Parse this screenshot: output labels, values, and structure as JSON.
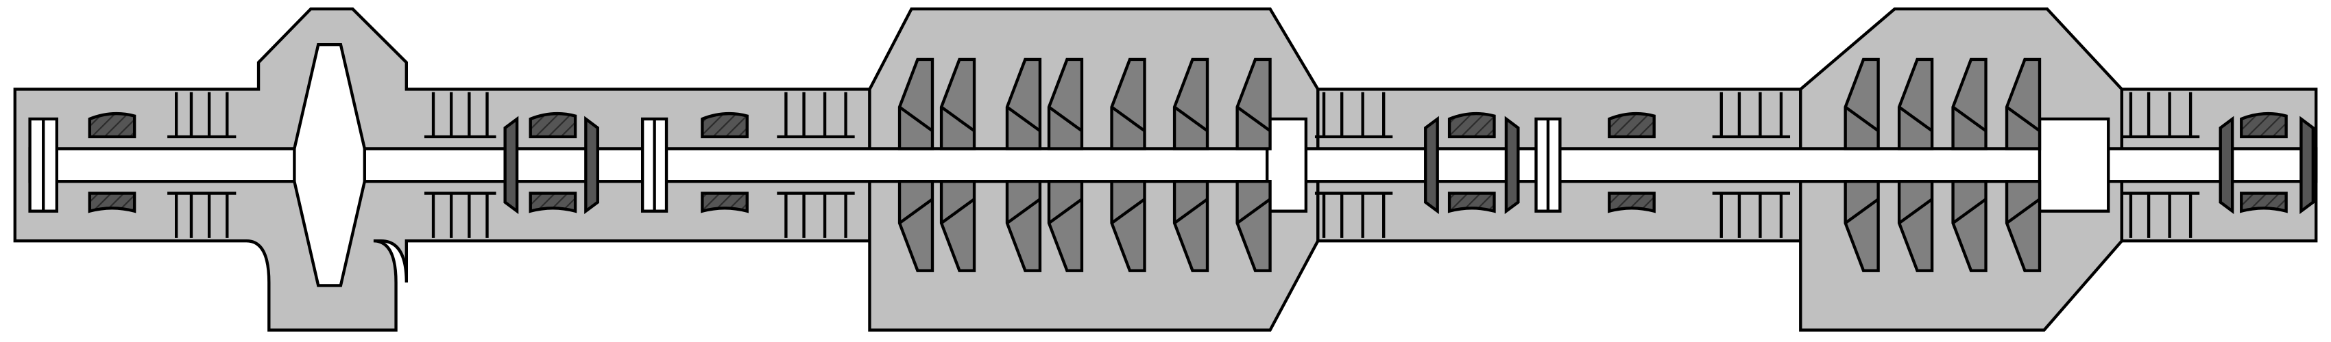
{
  "diagram": {
    "description_visible_text": "",
    "colors": {
      "casing": "#c0c0c0",
      "shaft": "#ffffff",
      "blade": "#808080",
      "bearing": "#555555",
      "outline": "#000000",
      "background": "#ffffff"
    },
    "components": [
      "casing",
      "rotor-shaft",
      "high-pressure-turbine-stage",
      "low-pressure-turbine-stage",
      "bearing",
      "coupling",
      "labyrinth-seal"
    ]
  }
}
